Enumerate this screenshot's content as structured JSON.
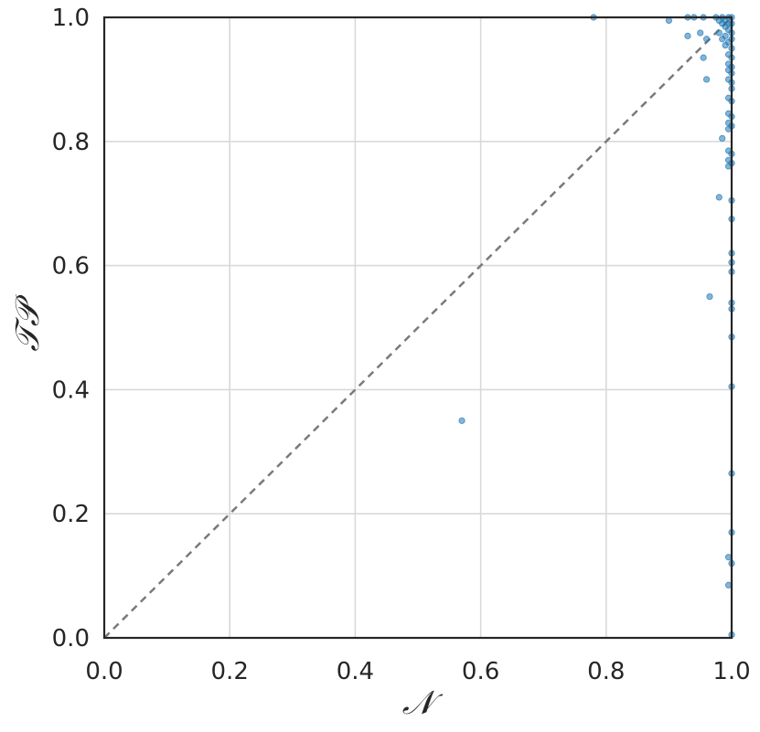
{
  "chart_data": {
    "type": "scatter",
    "title": "",
    "xlabel": "𝒩",
    "ylabel": "𝒯𝒫",
    "xlim": [
      0.0,
      1.0
    ],
    "ylim": [
      0.0,
      1.0
    ],
    "xticks": [
      0.0,
      0.2,
      0.4,
      0.6,
      0.8,
      1.0
    ],
    "yticks": [
      0.0,
      0.2,
      0.4,
      0.6,
      0.8,
      1.0
    ],
    "xtick_labels": [
      "0.0",
      "0.2",
      "0.4",
      "0.6",
      "0.8",
      "1.0"
    ],
    "ytick_labels": [
      "0.0",
      "0.2",
      "0.4",
      "0.6",
      "0.8",
      "1.0"
    ],
    "grid": true,
    "legend": "none",
    "reference_line": {
      "style": "dashed",
      "color": "#7a7a7a",
      "from": [
        0.0,
        0.0
      ],
      "to": [
        1.0,
        1.0
      ]
    },
    "point_color": "#1f77b4",
    "series": [
      {
        "points": [
          [
            0.57,
            0.35
          ],
          [
            0.78,
            1.0
          ],
          [
            0.9,
            0.995
          ],
          [
            0.93,
            1.0
          ],
          [
            0.94,
            1.0
          ],
          [
            0.955,
            1.0
          ],
          [
            0.93,
            0.97
          ],
          [
            0.95,
            0.975
          ],
          [
            0.96,
            0.965
          ],
          [
            0.955,
            0.935
          ],
          [
            0.96,
            0.9
          ],
          [
            0.975,
            1.0
          ],
          [
            0.98,
            0.995
          ],
          [
            0.985,
            1.0
          ],
          [
            0.99,
            0.995
          ],
          [
            0.995,
            1.0
          ],
          [
            1.0,
            1.0
          ],
          [
            0.985,
            0.99
          ],
          [
            0.99,
            0.985
          ],
          [
            0.995,
            0.99
          ],
          [
            1.0,
            0.99
          ],
          [
            0.98,
            0.975
          ],
          [
            0.99,
            0.97
          ],
          [
            0.995,
            0.98
          ],
          [
            1.0,
            0.975
          ],
          [
            0.985,
            0.965
          ],
          [
            0.995,
            0.96
          ],
          [
            1.0,
            0.965
          ],
          [
            0.99,
            0.955
          ],
          [
            1.0,
            0.95
          ],
          [
            0.995,
            0.94
          ],
          [
            1.0,
            0.935
          ],
          [
            0.995,
            0.925
          ],
          [
            1.0,
            0.92
          ],
          [
            0.995,
            0.915
          ],
          [
            1.0,
            0.91
          ],
          [
            0.995,
            0.9
          ],
          [
            1.0,
            0.895
          ],
          [
            1.0,
            0.885
          ],
          [
            0.995,
            0.87
          ],
          [
            1.0,
            0.865
          ],
          [
            0.995,
            0.845
          ],
          [
            1.0,
            0.84
          ],
          [
            0.995,
            0.83
          ],
          [
            1.0,
            0.825
          ],
          [
            0.995,
            0.82
          ],
          [
            0.985,
            0.805
          ],
          [
            0.995,
            0.785
          ],
          [
            1.0,
            0.78
          ],
          [
            0.995,
            0.77
          ],
          [
            1.0,
            0.765
          ],
          [
            0.995,
            0.76
          ],
          [
            0.98,
            0.71
          ],
          [
            1.0,
            0.705
          ],
          [
            1.0,
            0.675
          ],
          [
            1.0,
            0.62
          ],
          [
            1.0,
            0.605
          ],
          [
            1.0,
            0.59
          ],
          [
            0.965,
            0.55
          ],
          [
            1.0,
            0.54
          ],
          [
            1.0,
            0.53
          ],
          [
            1.0,
            0.485
          ],
          [
            1.0,
            0.405
          ],
          [
            1.0,
            0.265
          ],
          [
            1.0,
            0.17
          ],
          [
            0.995,
            0.13
          ],
          [
            1.0,
            0.12
          ],
          [
            0.995,
            0.085
          ],
          [
            1.0,
            0.005
          ]
        ]
      }
    ]
  }
}
